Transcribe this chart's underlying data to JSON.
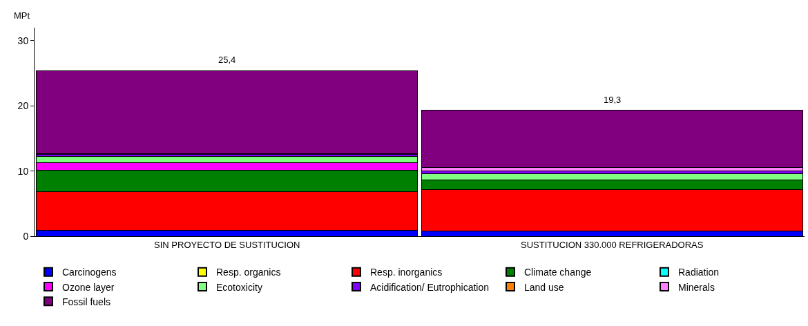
{
  "chart_data": {
    "type": "bar",
    "stacked": true,
    "ylabel": "MPt",
    "categories": [
      "SIN PROYECTO DE SUSTITUCION",
      "SUSTITUCION 330.000 REFRIGERADORAS"
    ],
    "series": [
      {
        "name": "Carcinogens",
        "color": "#0000ff",
        "values": [
          0.9,
          0.8
        ]
      },
      {
        "name": "Resp. organics",
        "color": "#ffff00",
        "values": [
          0,
          0
        ]
      },
      {
        "name": "Resp. inorganics",
        "color": "#ff0000",
        "values": [
          5.9,
          6.3
        ]
      },
      {
        "name": "Climate change",
        "color": "#008000",
        "values": [
          3.3,
          1.5
        ]
      },
      {
        "name": "Radiation",
        "color": "#00ffff",
        "values": [
          0,
          0
        ]
      },
      {
        "name": "Ozone layer",
        "color": "#ff00ff",
        "values": [
          1.2,
          0
        ]
      },
      {
        "name": "Ecotoxicity",
        "color": "#80ff80",
        "values": [
          0.9,
          1.0
        ]
      },
      {
        "name": "Acidification/ Eutrophication",
        "color": "#8000ff",
        "values": [
          0.4,
          0.4
        ]
      },
      {
        "name": "Land use",
        "color": "#ff8000",
        "values": [
          0,
          0
        ]
      },
      {
        "name": "Minerals",
        "color": "#ff80ff",
        "values": [
          0.1,
          0.5
        ]
      },
      {
        "name": "Fossil fuels",
        "color": "#800080",
        "values": [
          12.7,
          8.8
        ]
      }
    ],
    "totals": [
      "25,4",
      "19,3"
    ],
    "ylim": [
      0,
      32
    ],
    "yticks": [
      0,
      10,
      20,
      30
    ],
    "legend": "bottom"
  }
}
